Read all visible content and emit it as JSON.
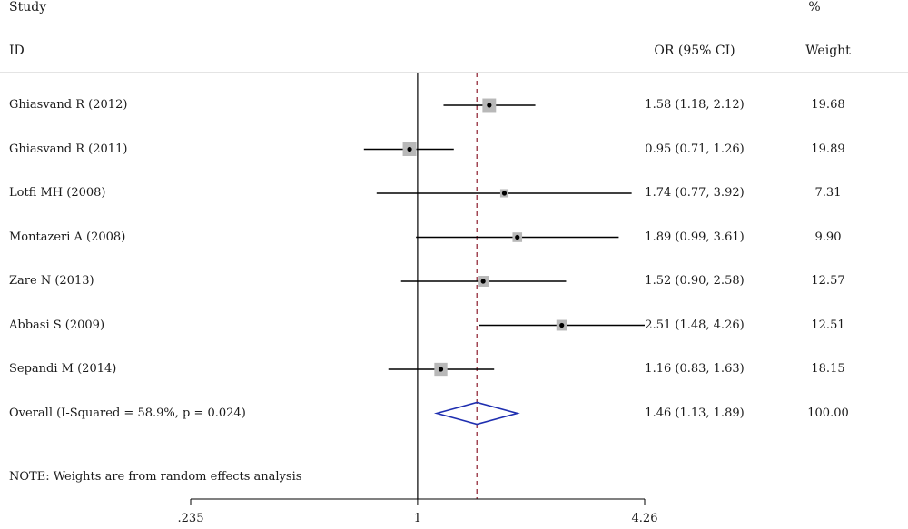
{
  "header": {
    "study_label": "Study",
    "id_label": "ID",
    "ci_label": "OR (95% CI)",
    "pct_label": "%",
    "weight_label": "Weight"
  },
  "note": "NOTE: Weights are from random effects analysis",
  "colors": {
    "square": "#b8b8b8",
    "ci_line": "#000000",
    "diamond": "#1f2fb0",
    "overall_line": "#8b1a2b",
    "separator": "#c8c8c8"
  },
  "chart_data": {
    "type": "forest",
    "x_scale": "log",
    "x_ticks": [
      {
        "value": 0.235,
        "label": ".235"
      },
      {
        "value": 1,
        "label": "1"
      },
      {
        "value": 4.26,
        "label": "4.26"
      }
    ],
    "xlim": [
      0.235,
      4.26
    ],
    "null_line": 1,
    "studies": [
      {
        "name": "Ghiasvand R (2012)",
        "or": 1.58,
        "lo": 1.18,
        "hi": 2.12,
        "ci_text": "1.58 (1.18, 2.12)",
        "weight": "19.68"
      },
      {
        "name": "Ghiasvand R (2011)",
        "or": 0.95,
        "lo": 0.71,
        "hi": 1.26,
        "ci_text": "0.95 (0.71, 1.26)",
        "weight": "19.89"
      },
      {
        "name": "Lotfi MH (2008)",
        "or": 1.74,
        "lo": 0.77,
        "hi": 3.92,
        "ci_text": "1.74 (0.77, 3.92)",
        "weight": "7.31"
      },
      {
        "name": "Montazeri A (2008)",
        "or": 1.89,
        "lo": 0.99,
        "hi": 3.61,
        "ci_text": "1.89 (0.99, 3.61)",
        "weight": "9.90"
      },
      {
        "name": "Zare N (2013)",
        "or": 1.52,
        "lo": 0.9,
        "hi": 2.58,
        "ci_text": "1.52 (0.90, 2.58)",
        "weight": "12.57"
      },
      {
        "name": "Abbasi S (2009)",
        "or": 2.51,
        "lo": 1.48,
        "hi": 4.26,
        "ci_text": "2.51 (1.48, 4.26)",
        "weight": "12.51"
      },
      {
        "name": "Sepandi M (2014)",
        "or": 1.16,
        "lo": 0.83,
        "hi": 1.63,
        "ci_text": "1.16 (0.83, 1.63)",
        "weight": "18.15"
      }
    ],
    "overall": {
      "label": "Overall  (I-Squared = 58.9%, p = 0.024)",
      "or": 1.46,
      "lo": 1.13,
      "hi": 1.89,
      "ci_text": "1.46 (1.13, 1.89)",
      "weight": "100.00"
    }
  }
}
